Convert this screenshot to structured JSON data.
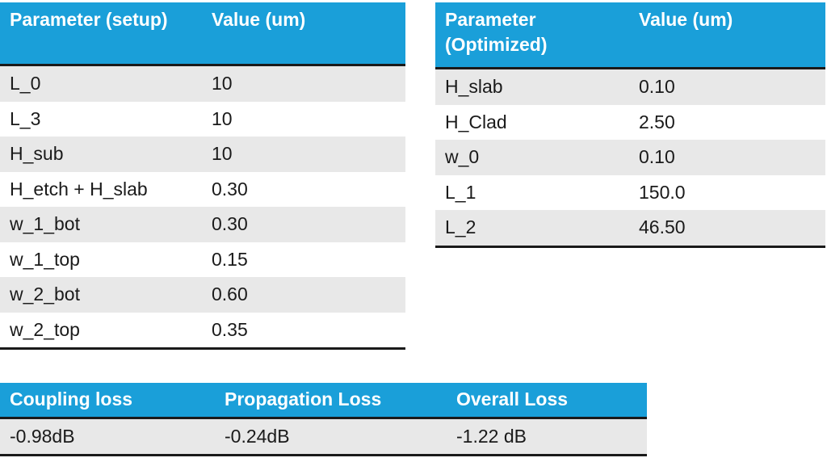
{
  "setup_table": {
    "headers": [
      "Parameter (setup)",
      "Value (um)"
    ],
    "rows": [
      [
        "L_0",
        "10"
      ],
      [
        "L_3",
        "10"
      ],
      [
        "H_sub",
        "10"
      ],
      [
        "H_etch + H_slab",
        "0.30"
      ],
      [
        "w_1_bot",
        "0.30"
      ],
      [
        "w_1_top",
        "0.15"
      ],
      [
        "w_2_bot",
        "0.60"
      ],
      [
        "w_2_top",
        "0.35"
      ]
    ]
  },
  "optimized_table": {
    "headers": [
      "Parameter (Optimized)",
      "Value (um)"
    ],
    "rows": [
      [
        "H_slab",
        "0.10"
      ],
      [
        "H_Clad",
        "2.50"
      ],
      [
        "w_0",
        "0.10"
      ],
      [
        "L_1",
        "150.0"
      ],
      [
        "L_2",
        "46.50"
      ]
    ]
  },
  "loss_table": {
    "headers": [
      "Coupling loss",
      "Propagation Loss",
      "Overall Loss"
    ],
    "rows": [
      [
        "-0.98dB",
        "-0.24dB",
        "-1.22 dB"
      ]
    ]
  },
  "colors": {
    "header_bg": "#1a9fd9",
    "header_text": "#ffffff",
    "stripe": "#e8e8e8",
    "rule": "#1a1a1a"
  }
}
